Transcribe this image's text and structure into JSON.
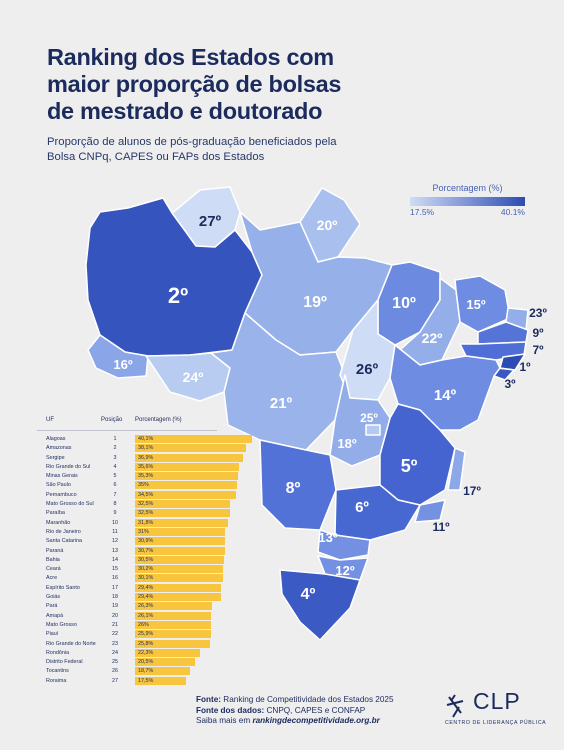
{
  "title_lines": [
    "Ranking dos Estados com",
    "maior proporção de bolsas",
    "de mestrado e doutorado"
  ],
  "subtitle_lines": [
    "Proporção de alunos de pós-graduação beneficiados pela",
    "Bolsa CNPq, CAPES ou FAPs dos Estados"
  ],
  "legend": {
    "title": "Porcentagem (%)",
    "min": "17.5%",
    "max": "40.1%",
    "color_min": "#cfdcf6",
    "color_max": "#2c4cb4"
  },
  "map_rank_labels": [
    "27º",
    "20º",
    "2º",
    "19º",
    "10º",
    "15º",
    "23º",
    "9º",
    "7º",
    "1º",
    "3º",
    "22º",
    "26º",
    "16º",
    "24º",
    "21º",
    "14º",
    "25º",
    "18º",
    "5º",
    "8º",
    "17º",
    "6º",
    "11º",
    "13º",
    "12º",
    "4º"
  ],
  "table_headers": {
    "uf": "UF",
    "pos": "Posição",
    "pct": "Porcentagem (%)"
  },
  "chart_data": {
    "type": "bar",
    "orientation": "horizontal",
    "bar_color": "#f7c53e",
    "categories": [
      "Alagoas",
      "Amazonas",
      "Sergipe",
      "Rio Grande do Sul",
      "Minas Gerais",
      "São Paulo",
      "Pernambuco",
      "Mato Grosso do Sul",
      "Paraíba",
      "Maranhão",
      "Rio de Janeiro",
      "Santa Catarina",
      "Paraná",
      "Bahia",
      "Ceará",
      "Acre",
      "Espírito Santo",
      "Goiás",
      "Pará",
      "Amapá",
      "Mato Grosso",
      "Piauí",
      "Rio Grande do Norte",
      "Rondônia",
      "Distrito Federal",
      "Tocantins",
      "Roraima"
    ],
    "positions": [
      "1",
      "2",
      "3",
      "4",
      "5",
      "6",
      "7",
      "8",
      "9",
      "10",
      "11",
      "12",
      "13",
      "14",
      "15",
      "16",
      "17",
      "18",
      "19",
      "20",
      "21",
      "22",
      "23",
      "24",
      "25",
      "26",
      "27"
    ],
    "values": [
      40.1,
      38.1,
      36.9,
      35.6,
      35.3,
      35,
      34.5,
      32.5,
      32.5,
      31.8,
      31,
      30.9,
      30.7,
      30.5,
      30.2,
      30.1,
      29.4,
      29.4,
      26.3,
      26.1,
      26,
      25.9,
      25.8,
      22.3,
      20.5,
      18.7,
      17.5
    ],
    "labels": [
      "40,1%",
      "38,1%",
      "36,9%",
      "35,6%",
      "35,3%",
      "35%",
      "34,5%",
      "32,5%",
      "32,5%",
      "31,8%",
      "31%",
      "30,9%",
      "30,7%",
      "30,5%",
      "30,2%",
      "30,1%",
      "29,4%",
      "29,4%",
      "26,3%",
      "26,1%",
      "26%",
      "25,9%",
      "25,8%",
      "22,3%",
      "20,5%",
      "18,7%",
      "17,5%"
    ]
  },
  "source": {
    "label1": "Fonte:",
    "text1": "Ranking de Competitividade dos Estados 2025",
    "label2": "Fonte dos dados:",
    "text2": "CNPQ, CAPES e CONFAP",
    "text3": "Saiba mais em",
    "link": "rankingdecompetitividade.org.br"
  },
  "logo": {
    "name": "CLP",
    "tagline": "CENTRO DE LIDERANÇA PÚBLICA"
  }
}
